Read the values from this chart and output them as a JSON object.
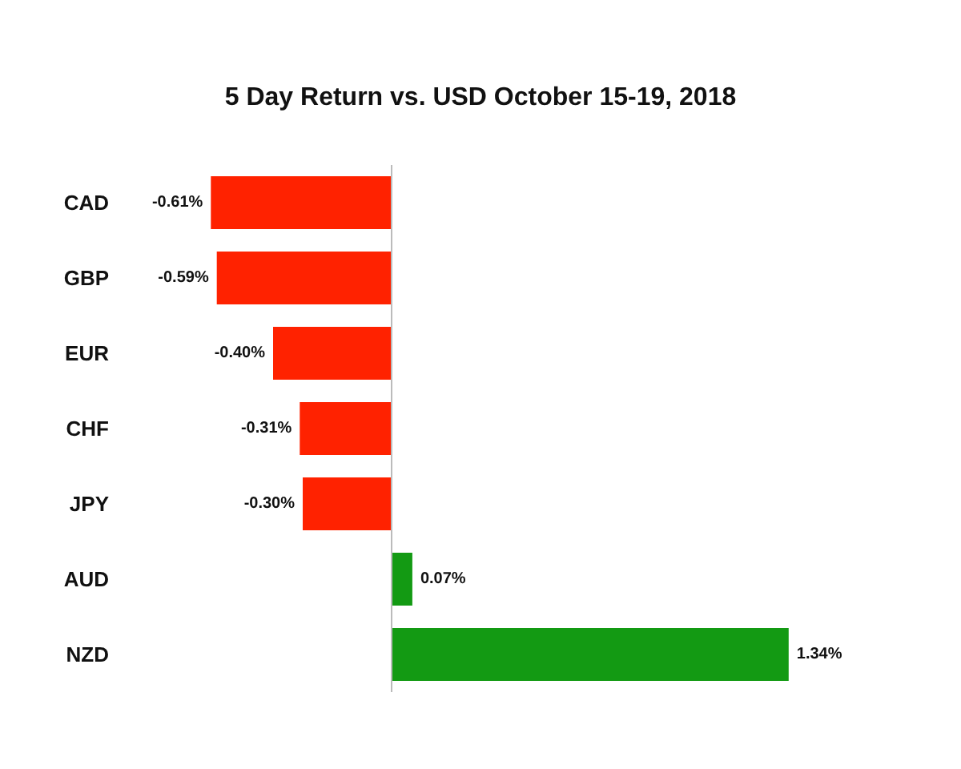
{
  "chart_data": {
    "type": "bar",
    "orientation": "horizontal",
    "title": "5 Day Return vs. USD October 15-19, 2018",
    "categories": [
      "CAD",
      "GBP",
      "EUR",
      "CHF",
      "JPY",
      "AUD",
      "NZD"
    ],
    "values": [
      -0.61,
      -0.59,
      -0.4,
      -0.31,
      -0.3,
      0.07,
      1.34
    ],
    "value_labels": [
      "-0.61%",
      "-0.59%",
      "-0.40%",
      "-0.31%",
      "-0.30%",
      "0.07%",
      "1.34%"
    ],
    "colors": [
      "#ff2200",
      "#ff2200",
      "#ff2200",
      "#ff2200",
      "#ff2200",
      "#139a13",
      "#139a13"
    ],
    "tick_labels": "y"
  }
}
